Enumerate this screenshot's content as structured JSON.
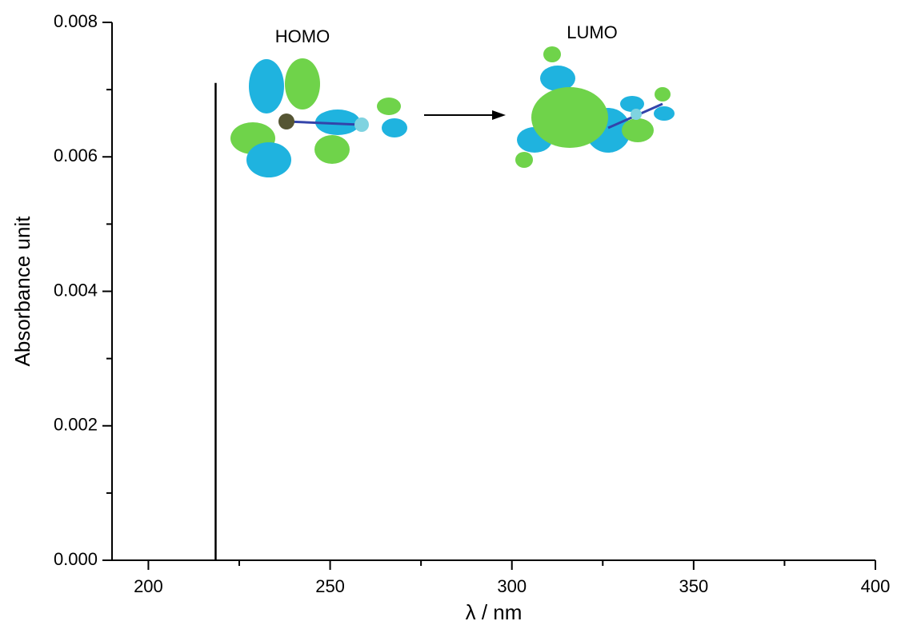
{
  "chart_data": {
    "type": "stick",
    "x": [
      218.5
    ],
    "values": [
      0.0071
    ],
    "color": "#000000",
    "xlabel": "λ / nm",
    "ylabel": "Absorbance unit",
    "annotations": [
      "HOMO",
      "LUMO"
    ],
    "xlim": [
      190,
      400
    ],
    "xticks": [
      200,
      250,
      300,
      350,
      400
    ],
    "ylim": [
      0,
      0.008
    ],
    "yticks": [
      {
        "value": 0,
        "label": "0.000"
      },
      {
        "value": 0.002,
        "label": "0.002"
      },
      {
        "value": 0.004,
        "label": "0.004"
      },
      {
        "value": 0.006,
        "label": "0.006"
      },
      {
        "value": 0.008,
        "label": "0.008"
      }
    ],
    "grid": false
  }
}
